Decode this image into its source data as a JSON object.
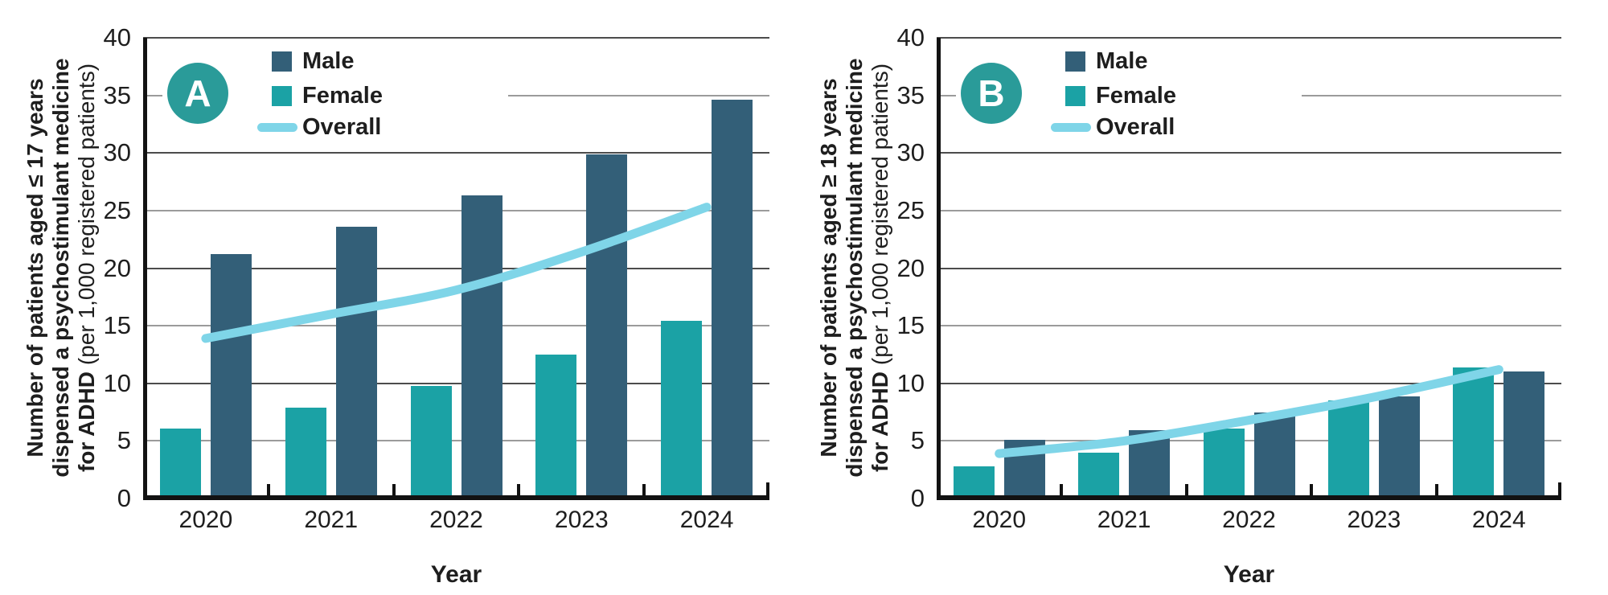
{
  "axis": {
    "yticks": [
      "0",
      "5",
      "10",
      "15",
      "20",
      "25",
      "30",
      "35",
      "40"
    ],
    "ylim": [
      0,
      40
    ],
    "ytick_step": 5
  },
  "colors": {
    "male": "#335f78",
    "female": "#1ba2a5",
    "overall": "#7fd5e8",
    "panel_circle": "#2a9b99",
    "grid_minor": "#9b9b9b",
    "grid_major": "#4c4c4c",
    "axis": "#121212",
    "text": "#1e1e1e"
  },
  "chart_data": [
    {
      "type": "bar",
      "panel_label": "A",
      "ylabel_lines": [
        "Number of patients aged ≤ 17 years",
        "dispensed a psychostimulant medicine",
        "for ADHD"
      ],
      "ylabel_suffix": "(per 1,000 registered patients)",
      "xlabel": "Year",
      "categories": [
        "2020",
        "2021",
        "2022",
        "2023",
        "2024"
      ],
      "series": [
        {
          "name": "Male",
          "type": "bar",
          "color_key": "male",
          "values": [
            21.2,
            23.6,
            26.3,
            29.9,
            34.6
          ]
        },
        {
          "name": "Female",
          "type": "bar",
          "color_key": "female",
          "values": [
            6.1,
            7.9,
            9.8,
            12.5,
            15.4
          ]
        },
        {
          "name": "Overall",
          "type": "line",
          "color_key": "overall",
          "values": [
            13.9,
            16.0,
            18.1,
            21.4,
            25.3
          ]
        }
      ],
      "ylim": [
        0,
        40
      ],
      "grid": true,
      "legend_position": "top-left-inside"
    },
    {
      "type": "bar",
      "panel_label": "B",
      "ylabel_lines": [
        "Number of patients aged ≥ 18 years",
        "dispensed a psychostimulant medicine",
        "for ADHD"
      ],
      "ylabel_suffix": "(per 1,000 registered patients)",
      "xlabel": "Year",
      "categories": [
        "2020",
        "2021",
        "2022",
        "2023",
        "2024"
      ],
      "series": [
        {
          "name": "Male",
          "type": "bar",
          "color_key": "male",
          "values": [
            5.1,
            5.9,
            7.5,
            8.9,
            11.0
          ]
        },
        {
          "name": "Female",
          "type": "bar",
          "color_key": "female",
          "values": [
            2.8,
            4.0,
            6.1,
            8.5,
            11.4
          ]
        },
        {
          "name": "Overall",
          "type": "line",
          "color_key": "overall",
          "values": [
            3.9,
            5.0,
            6.8,
            8.8,
            11.2
          ]
        }
      ],
      "ylim": [
        0,
        40
      ],
      "grid": true,
      "legend_position": "top-left-inside"
    }
  ]
}
